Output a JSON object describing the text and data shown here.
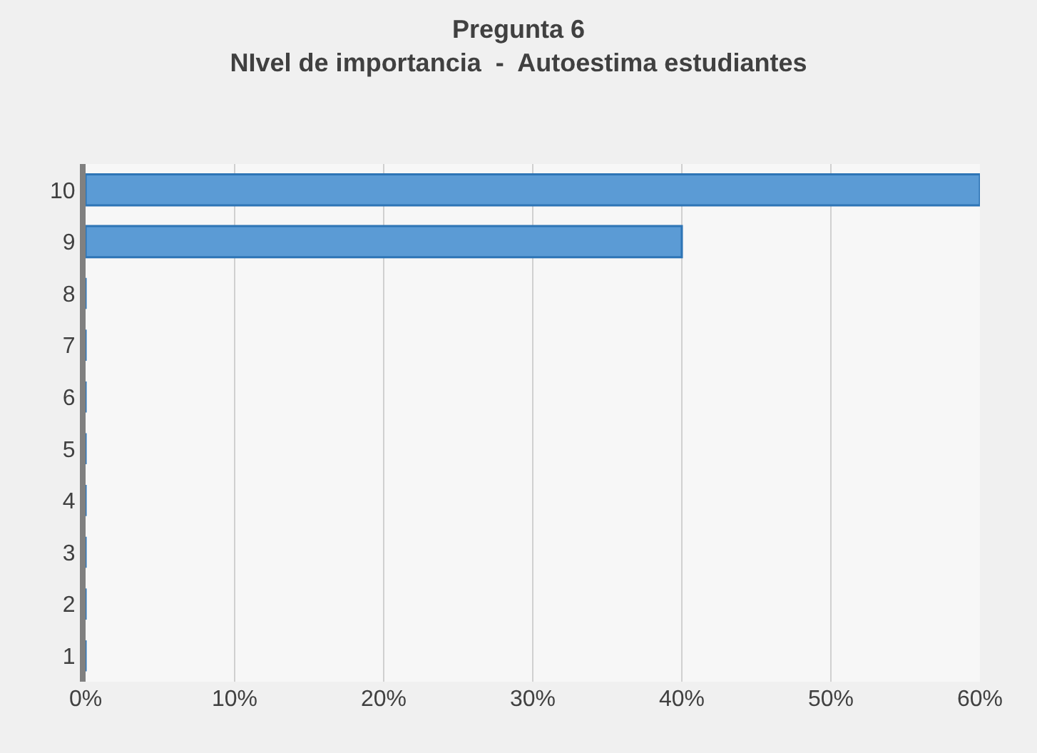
{
  "chart_data": {
    "type": "bar",
    "orientation": "horizontal",
    "title": "Pregunta 6\nNIvel de importancia  -  Autoestima estudiantes",
    "categories": [
      "10",
      "9",
      "8",
      "7",
      "6",
      "5",
      "4",
      "3",
      "2",
      "1"
    ],
    "values": [
      60,
      40,
      0,
      0,
      0,
      0,
      0,
      0,
      0,
      0
    ],
    "color": "#5b9bd5",
    "xlim": [
      0,
      60
    ],
    "xticks": [
      {
        "value": 0,
        "label": "0%"
      },
      {
        "value": 10,
        "label": "10%"
      },
      {
        "value": 20,
        "label": "20%"
      },
      {
        "value": 30,
        "label": "30%"
      },
      {
        "value": 40,
        "label": "40%"
      },
      {
        "value": 50,
        "label": "50%"
      },
      {
        "value": 60,
        "label": "60%"
      }
    ],
    "grid": "x"
  }
}
